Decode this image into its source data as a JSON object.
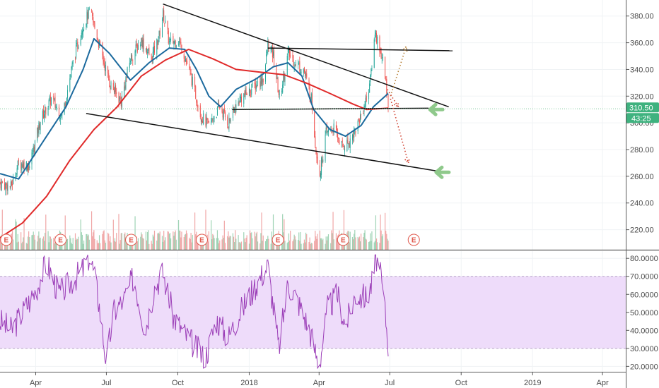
{
  "chart_data": [
    {
      "type": "candlestick",
      "y_axis_ticks": [
        "380.00",
        "360.00",
        "340.00",
        "320.00",
        "300.00",
        "280.00",
        "260.00",
        "240.00",
        "220.00"
      ],
      "y_ticks_values": [
        380,
        360,
        340,
        320,
        300,
        280,
        260,
        240,
        220
      ],
      "ylim": [
        205,
        392
      ],
      "x_axis_ticks": [
        "Apr",
        "Jul",
        "Oct",
        "2018",
        "Apr",
        "Jul",
        "Oct",
        "2019",
        "Apr"
      ],
      "x_range": [
        "2017-02-14",
        "2019-05-01"
      ],
      "data_end": "2018-06-29",
      "current_price": 310.5,
      "current_price_label": "310.50",
      "countdown_label": "43:25",
      "earnings_marker_label": "E",
      "earnings_dates": [
        "2017-02-22",
        "2017-05-03",
        "2017-08-02",
        "2017-11-01",
        "2018-02-07",
        "2018-05-02",
        "2018-08-01"
      ],
      "price_path": [
        [
          "2017-02-14",
          255
        ],
        [
          "2017-02-28",
          252
        ],
        [
          "2017-03-10",
          270
        ],
        [
          "2017-03-24",
          268
        ],
        [
          "2017-04-07",
          302
        ],
        [
          "2017-04-21",
          318
        ],
        [
          "2017-05-05",
          305
        ],
        [
          "2017-05-19",
          345
        ],
        [
          "2017-05-31",
          372
        ],
        [
          "2017-06-10",
          384
        ],
        [
          "2017-06-22",
          358
        ],
        [
          "2017-07-05",
          330
        ],
        [
          "2017-07-20",
          316
        ],
        [
          "2017-08-01",
          348
        ],
        [
          "2017-08-15",
          362
        ],
        [
          "2017-08-28",
          348
        ],
        [
          "2017-09-07",
          365
        ],
        [
          "2017-09-12",
          382
        ],
        [
          "2017-09-20",
          360
        ],
        [
          "2017-10-02",
          362
        ],
        [
          "2017-10-10",
          350
        ],
        [
          "2017-10-20",
          330
        ],
        [
          "2017-10-31",
          305
        ],
        [
          "2017-11-10",
          298
        ],
        [
          "2017-11-24",
          312
        ],
        [
          "2017-12-05",
          300
        ],
        [
          "2017-12-20",
          318
        ],
        [
          "2018-01-05",
          326
        ],
        [
          "2018-01-20",
          334
        ],
        [
          "2018-01-25",
          358
        ],
        [
          "2018-02-01",
          350
        ],
        [
          "2018-02-09",
          318
        ],
        [
          "2018-02-20",
          352
        ],
        [
          "2018-03-01",
          345
        ],
        [
          "2018-03-12",
          340
        ],
        [
          "2018-03-22",
          318
        ],
        [
          "2018-03-28",
          280
        ],
        [
          "2018-04-02",
          262
        ],
        [
          "2018-04-10",
          292
        ],
        [
          "2018-04-20",
          296
        ],
        [
          "2018-05-01",
          282
        ],
        [
          "2018-05-10",
          286
        ],
        [
          "2018-05-20",
          298
        ],
        [
          "2018-05-31",
          316
        ],
        [
          "2018-06-06",
          332
        ],
        [
          "2018-06-12",
          368
        ],
        [
          "2018-06-18",
          356
        ],
        [
          "2018-06-22",
          346
        ],
        [
          "2018-06-29",
          316
        ]
      ],
      "series": [
        {
          "name": "",
          "color": "#1c6a9e",
          "points": [
            [
              "2017-02-14",
              262
            ],
            [
              "2017-03-10",
              258
            ],
            [
              "2017-04-15",
              290
            ],
            [
              "2017-05-10",
              312
            ],
            [
              "2017-06-01",
              340
            ],
            [
              "2017-06-15",
              363
            ],
            [
              "2017-07-05",
              352
            ],
            [
              "2017-08-01",
              332
            ],
            [
              "2017-08-25",
              345
            ],
            [
              "2017-09-20",
              356
            ],
            [
              "2017-10-10",
              355
            ],
            [
              "2017-10-25",
              340
            ],
            [
              "2017-11-10",
              320
            ],
            [
              "2017-11-25",
              312
            ],
            [
              "2017-12-15",
              325
            ],
            [
              "2018-01-10",
              333
            ],
            [
              "2018-02-01",
              342
            ],
            [
              "2018-02-20",
              345
            ],
            [
              "2018-03-10",
              335
            ],
            [
              "2018-03-25",
              310
            ],
            [
              "2018-04-15",
              295
            ],
            [
              "2018-05-05",
              290
            ],
            [
              "2018-05-25",
              298
            ],
            [
              "2018-06-10",
              312
            ],
            [
              "2018-06-29",
              322
            ]
          ]
        },
        {
          "name": "",
          "color": "#e02a2a",
          "points": [
            [
              "2017-02-14",
              214
            ],
            [
              "2017-03-15",
              225
            ],
            [
              "2017-04-15",
              245
            ],
            [
              "2017-05-15",
              272
            ],
            [
              "2017-06-15",
              295
            ],
            [
              "2017-07-15",
              312
            ],
            [
              "2017-08-15",
              335
            ],
            [
              "2017-09-15",
              347
            ],
            [
              "2017-10-15",
              355
            ],
            [
              "2017-11-15",
              348
            ],
            [
              "2017-12-15",
              340
            ],
            [
              "2018-01-15",
              338
            ],
            [
              "2018-02-15",
              336
            ],
            [
              "2018-03-15",
              330
            ],
            [
              "2018-04-15",
              322
            ],
            [
              "2018-05-15",
              314
            ],
            [
              "2018-06-01",
              310
            ],
            [
              "2018-06-29",
              311
            ]
          ]
        }
      ],
      "trendlines": [
        {
          "from": [
            "2017-09-12",
            389
          ],
          "to": [
            "2018-09-15",
            312
          ]
        },
        {
          "from": [
            "2017-06-05",
            307
          ],
          "to": [
            "2018-09-10",
            263
          ]
        },
        {
          "from": [
            "2017-12-10",
            310
          ],
          "to": [
            "2018-08-20",
            311
          ]
        },
        {
          "from": [
            "2018-01-25",
            356
          ],
          "to": [
            "2018-09-20",
            354
          ]
        }
      ],
      "projections": [
        {
          "color": "#b8833a",
          "from": [
            "2018-07-02",
            320
          ],
          "to": [
            "2018-07-22",
            357
          ]
        },
        {
          "color": "#d04030",
          "from": [
            "2018-07-02",
            318
          ],
          "to": [
            "2018-07-25",
            270
          ]
        },
        {
          "color": "#d04030",
          "from": [
            "2018-06-28",
            325
          ],
          "to": [
            "2018-07-12",
            312
          ]
        }
      ],
      "arrows": [
        {
          "color": "#8fc98b",
          "at": [
            "2018-08-20",
            310
          ]
        },
        {
          "color": "#8fc98b",
          "at": [
            "2018-08-28",
            263
          ]
        }
      ],
      "volume_color_up": "#9fd3b5",
      "volume_color_down": "#f0a7a7"
    },
    {
      "type": "line",
      "y_axis_ticks": [
        "80.0000",
        "70.0000",
        "60.0000",
        "50.0000",
        "40.0000",
        "30.0000",
        "20.0000"
      ],
      "y_ticks_values": [
        80,
        70,
        60,
        50,
        40,
        30,
        20
      ],
      "ylim": [
        17,
        84
      ],
      "band": [
        30,
        70
      ],
      "band_color": "#eedcfa",
      "line_color": "#9c3fb8",
      "rsi_path": [
        [
          "2017-02-14",
          45
        ],
        [
          "2017-03-01",
          40
        ],
        [
          "2017-03-15",
          50
        ],
        [
          "2017-04-01",
          62
        ],
        [
          "2017-04-15",
          78
        ],
        [
          "2017-05-01",
          60
        ],
        [
          "2017-05-15",
          66
        ],
        [
          "2017-06-01",
          74
        ],
        [
          "2017-06-10",
          82
        ],
        [
          "2017-06-20",
          60
        ],
        [
          "2017-07-01",
          22
        ],
        [
          "2017-07-10",
          50
        ],
        [
          "2017-07-25",
          58
        ],
        [
          "2017-08-05",
          70
        ],
        [
          "2017-08-20",
          40
        ],
        [
          "2017-09-01",
          64
        ],
        [
          "2017-09-12",
          72
        ],
        [
          "2017-09-25",
          48
        ],
        [
          "2017-10-10",
          38
        ],
        [
          "2017-10-25",
          30
        ],
        [
          "2017-11-05",
          24
        ],
        [
          "2017-11-20",
          46
        ],
        [
          "2017-12-05",
          36
        ],
        [
          "2017-12-20",
          50
        ],
        [
          "2018-01-05",
          62
        ],
        [
          "2018-01-25",
          76
        ],
        [
          "2018-02-08",
          30
        ],
        [
          "2018-02-20",
          66
        ],
        [
          "2018-03-05",
          56
        ],
        [
          "2018-03-20",
          40
        ],
        [
          "2018-04-01",
          20
        ],
        [
          "2018-04-12",
          52
        ],
        [
          "2018-04-25",
          60
        ],
        [
          "2018-05-05",
          42
        ],
        [
          "2018-05-18",
          60
        ],
        [
          "2018-06-01",
          58
        ],
        [
          "2018-06-08",
          66
        ],
        [
          "2018-06-14",
          80
        ],
        [
          "2018-06-20",
          68
        ],
        [
          "2018-06-25",
          50
        ],
        [
          "2018-06-29",
          33
        ]
      ]
    }
  ]
}
